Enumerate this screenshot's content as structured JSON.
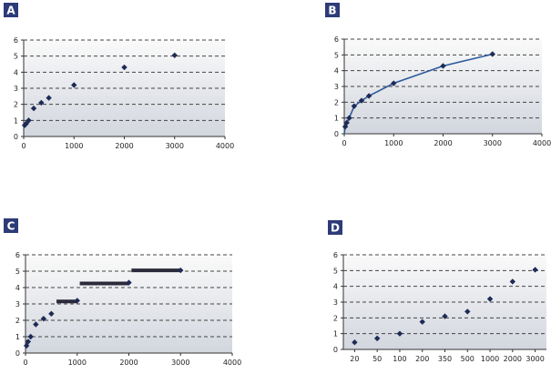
{
  "chart_data": [
    {
      "panel": "A",
      "type": "scatter",
      "x_scale": "linear",
      "xlim": [
        0,
        4000
      ],
      "ylim": [
        0,
        6
      ],
      "x_ticks": [
        0,
        1000,
        2000,
        3000,
        4000
      ],
      "y_ticks": [
        0,
        1,
        2,
        3,
        4,
        5,
        6
      ],
      "grid": "horizontal dashed",
      "points": [
        {
          "x": 20,
          "y": 0.7
        },
        {
          "x": 50,
          "y": 0.8
        },
        {
          "x": 100,
          "y": 1.0
        },
        {
          "x": 200,
          "y": 1.75
        },
        {
          "x": 350,
          "y": 2.1
        },
        {
          "x": 500,
          "y": 2.4
        },
        {
          "x": 1000,
          "y": 3.2
        },
        {
          "x": 2000,
          "y": 4.3
        },
        {
          "x": 3000,
          "y": 5.05
        }
      ]
    },
    {
      "panel": "B",
      "type": "scatter",
      "x_scale": "linear",
      "xlim": [
        0,
        4000
      ],
      "ylim": [
        0,
        6
      ],
      "x_ticks": [
        0,
        1000,
        2000,
        3000,
        4000
      ],
      "y_ticks": [
        0,
        1,
        2,
        3,
        4,
        5,
        6
      ],
      "grid": "horizontal dashed",
      "fit_line": true,
      "points": [
        {
          "x": 20,
          "y": 0.45
        },
        {
          "x": 50,
          "y": 0.7
        },
        {
          "x": 100,
          "y": 1.0
        },
        {
          "x": 200,
          "y": 1.75
        },
        {
          "x": 350,
          "y": 2.1
        },
        {
          "x": 500,
          "y": 2.4
        },
        {
          "x": 1000,
          "y": 3.2
        },
        {
          "x": 2000,
          "y": 4.3
        },
        {
          "x": 3000,
          "y": 5.05
        }
      ]
    },
    {
      "panel": "C",
      "type": "scatter",
      "x_scale": "linear",
      "xlim": [
        0,
        4000
      ],
      "ylim": [
        0,
        6
      ],
      "x_ticks": [
        0,
        1000,
        2000,
        3000,
        4000
      ],
      "y_ticks": [
        0,
        1,
        2,
        3,
        4,
        5,
        6
      ],
      "grid": "horizontal dashed",
      "points": [
        {
          "x": 20,
          "y": 0.45
        },
        {
          "x": 50,
          "y": 0.7
        },
        {
          "x": 100,
          "y": 1.0
        },
        {
          "x": 200,
          "y": 1.75
        },
        {
          "x": 350,
          "y": 2.1
        },
        {
          "x": 500,
          "y": 2.4
        },
        {
          "x": 1000,
          "y": 3.2
        },
        {
          "x": 2000,
          "y": 4.3
        },
        {
          "x": 3000,
          "y": 5.05
        }
      ],
      "steps": [
        {
          "x_start": 600,
          "x_end": 1000,
          "y": 3.15
        },
        {
          "x_start": 1050,
          "x_end": 2000,
          "y": 4.25
        },
        {
          "x_start": 2050,
          "x_end": 3000,
          "y": 5.05
        }
      ]
    },
    {
      "panel": "D",
      "type": "scatter",
      "x_scale": "categorical",
      "categories": [
        "20",
        "50",
        "100",
        "200",
        "350",
        "500",
        "1000",
        "2000",
        "3000"
      ],
      "values": [
        0.45,
        0.7,
        1.0,
        1.75,
        2.1,
        2.4,
        3.2,
        4.3,
        5.05
      ],
      "ylim": [
        0,
        6
      ],
      "y_ticks": [
        0,
        1,
        2,
        3,
        4,
        5,
        6
      ],
      "grid": "horizontal dashed"
    }
  ],
  "colors": {
    "panel_label_bg": "#2d3b78",
    "plot_bg_top": "#fafafa",
    "plot_bg_bottom": "#d2d6de",
    "marker": "#1e2b55",
    "fit_line": "#2c5a9c",
    "step_bar": "#2a2a3a"
  }
}
